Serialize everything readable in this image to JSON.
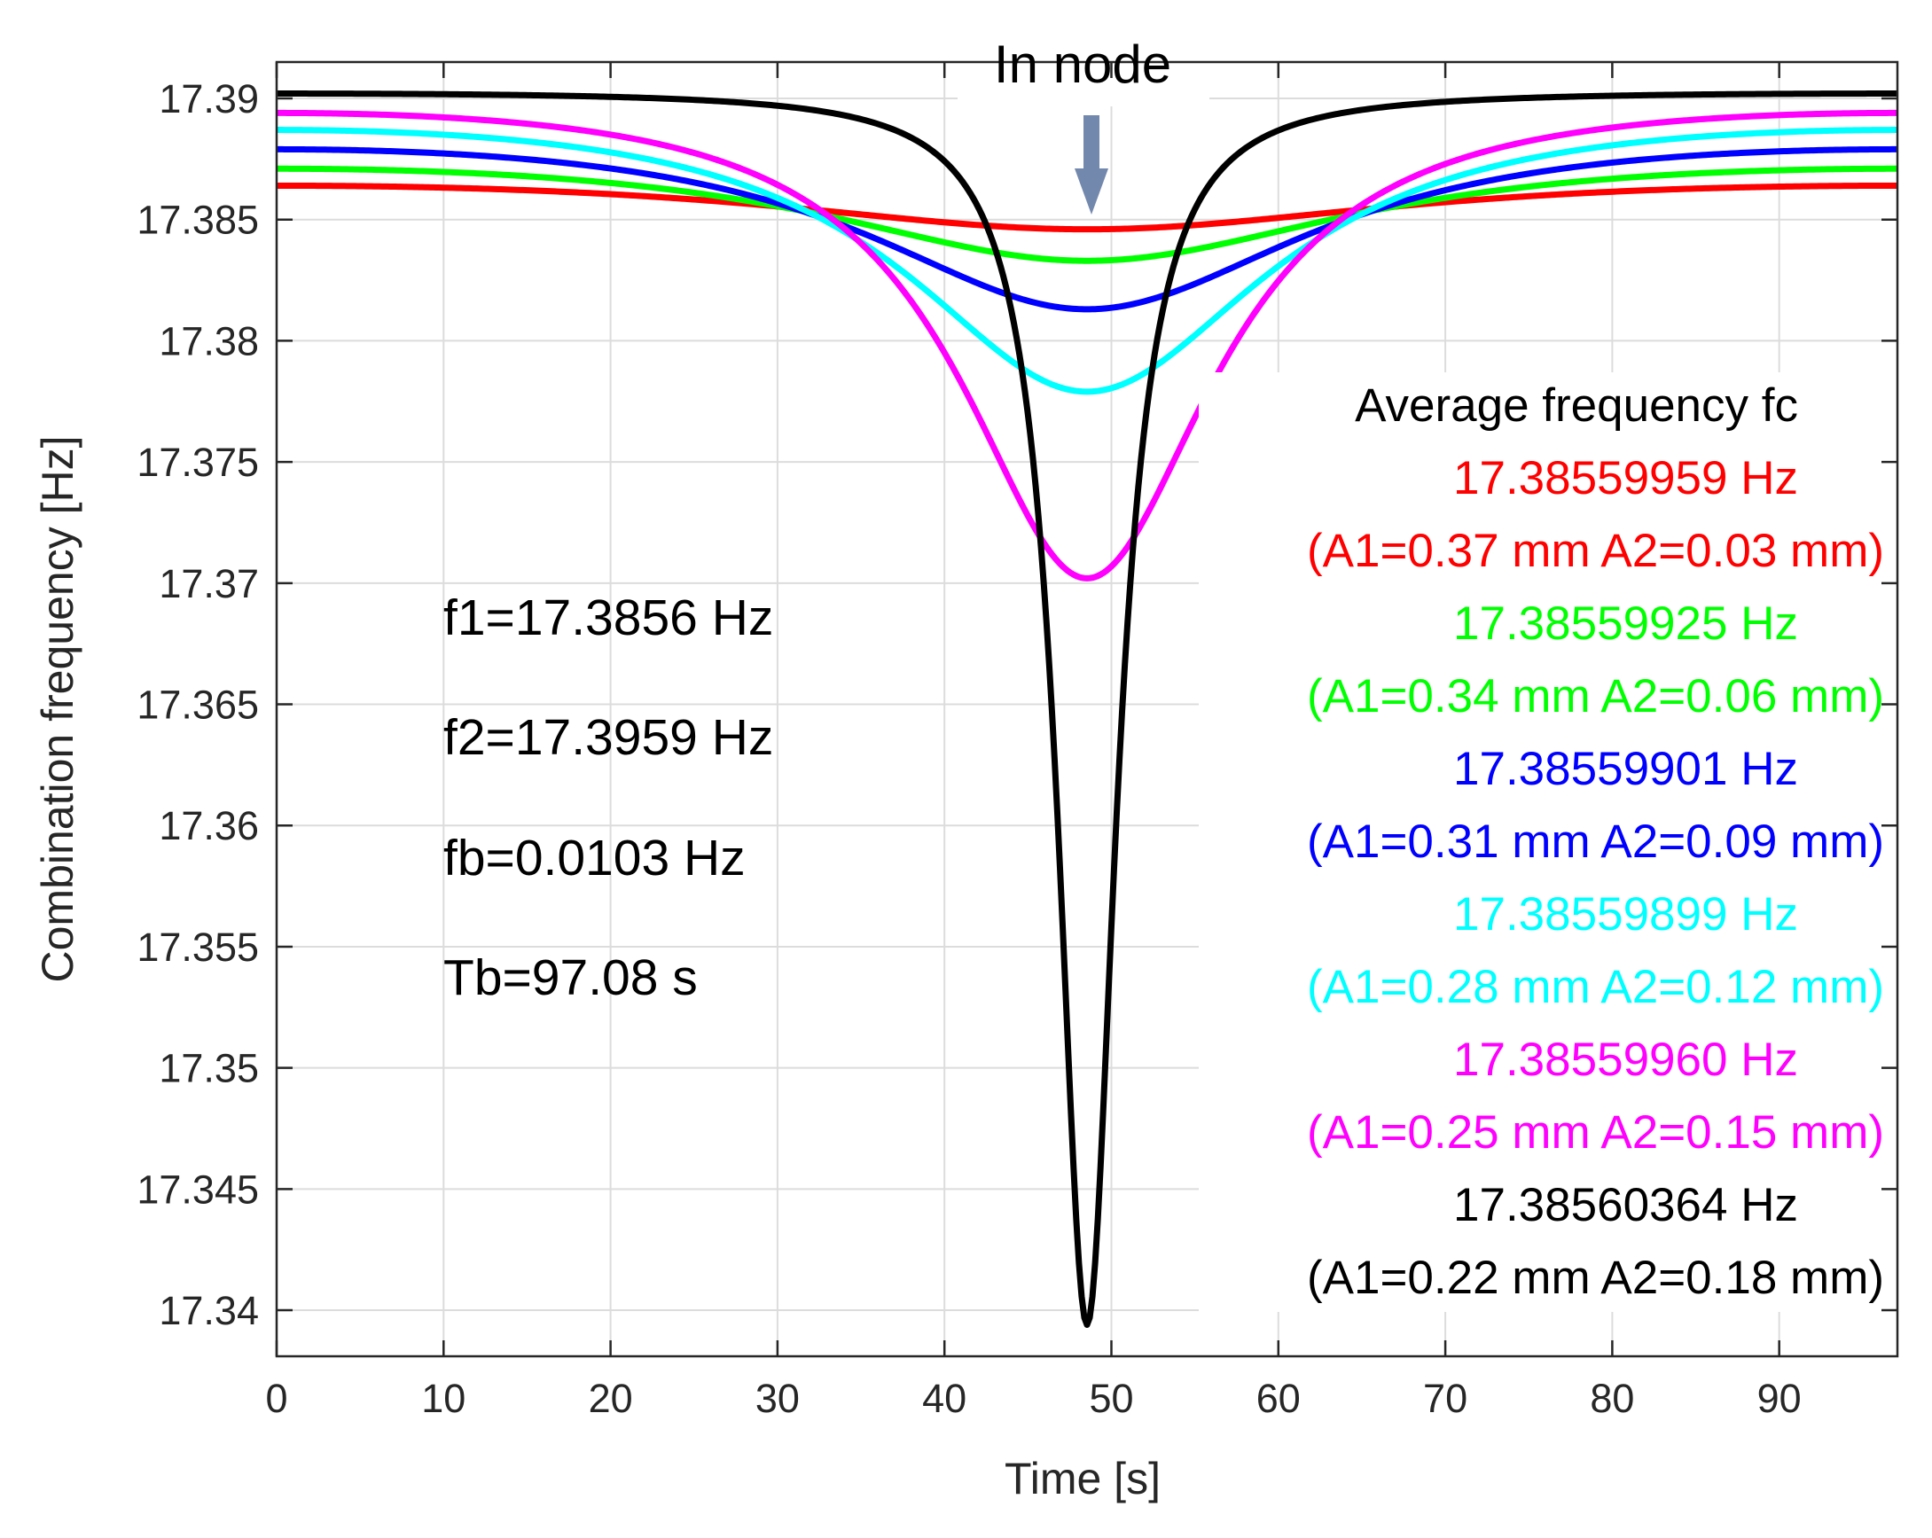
{
  "chart_data": {
    "type": "line",
    "xlabel": "Time [s]",
    "ylabel": "Combination frequency [Hz]",
    "xlim": [
      0,
      97.08
    ],
    "ylim": [
      17.3381,
      17.3915
    ],
    "x_ticks": [
      0,
      10,
      20,
      30,
      40,
      50,
      60,
      70,
      80,
      90
    ],
    "x_tick_labels": [
      "0",
      "10",
      "20",
      "30",
      "40",
      "50",
      "60",
      "70",
      "80",
      "90"
    ],
    "y_ticks": [
      17.34,
      17.345,
      17.35,
      17.355,
      17.36,
      17.365,
      17.37,
      17.375,
      17.38,
      17.385,
      17.39
    ],
    "y_tick_labels": [
      "17.34",
      "17.345",
      "17.35",
      "17.355",
      "17.36",
      "17.365",
      "17.37",
      "17.375",
      "17.38",
      "17.385",
      "17.39"
    ],
    "grid": true,
    "legend_title": "Average frequency fc",
    "legend_position": "right",
    "annotation": {
      "text": "In node",
      "x": 48.54
    },
    "params": [
      "f1=17.3856 Hz",
      "f2=17.3959 Hz",
      "fb=0.0103 Hz",
      "Tb=97.08 s"
    ],
    "period_s": 97.08,
    "series": [
      {
        "legend_value": "17.38559959 Hz",
        "legend_params": "(A1=0.37 mm A2=0.03 mm)",
        "color": "#ff0000",
        "start": 17.3864,
        "min": 17.3846,
        "min_x": 48.54
      },
      {
        "legend_value": "17.38559925 Hz",
        "legend_params": "(A1=0.34 mm A2=0.06 mm)",
        "color": "#00ff00",
        "start": 17.3871,
        "min": 17.3833,
        "min_x": 48.54
      },
      {
        "legend_value": "17.38559901 Hz",
        "legend_params": "(A1=0.31 mm A2=0.09 mm)",
        "color": "#0000ff",
        "start": 17.3879,
        "min": 17.3813,
        "min_x": 48.54
      },
      {
        "legend_value": "17.38559899 Hz",
        "legend_params": "(A1=0.28 mm A2=0.12 mm)",
        "color": "#00ffff",
        "start": 17.3887,
        "min": 17.3779,
        "min_x": 48.54
      },
      {
        "legend_value": "17.38559960 Hz",
        "legend_params": "(A1=0.25 mm A2=0.15 mm)",
        "color": "#ff00ff",
        "start": 17.3894,
        "min": 17.3702,
        "min_x": 48.54
      },
      {
        "legend_value": "17.38560364 Hz",
        "legend_params": "(A1=0.22 mm A2=0.18 mm)",
        "color": "#000000",
        "start": 17.3902,
        "min": 17.3394,
        "min_x": 48.54
      }
    ]
  }
}
